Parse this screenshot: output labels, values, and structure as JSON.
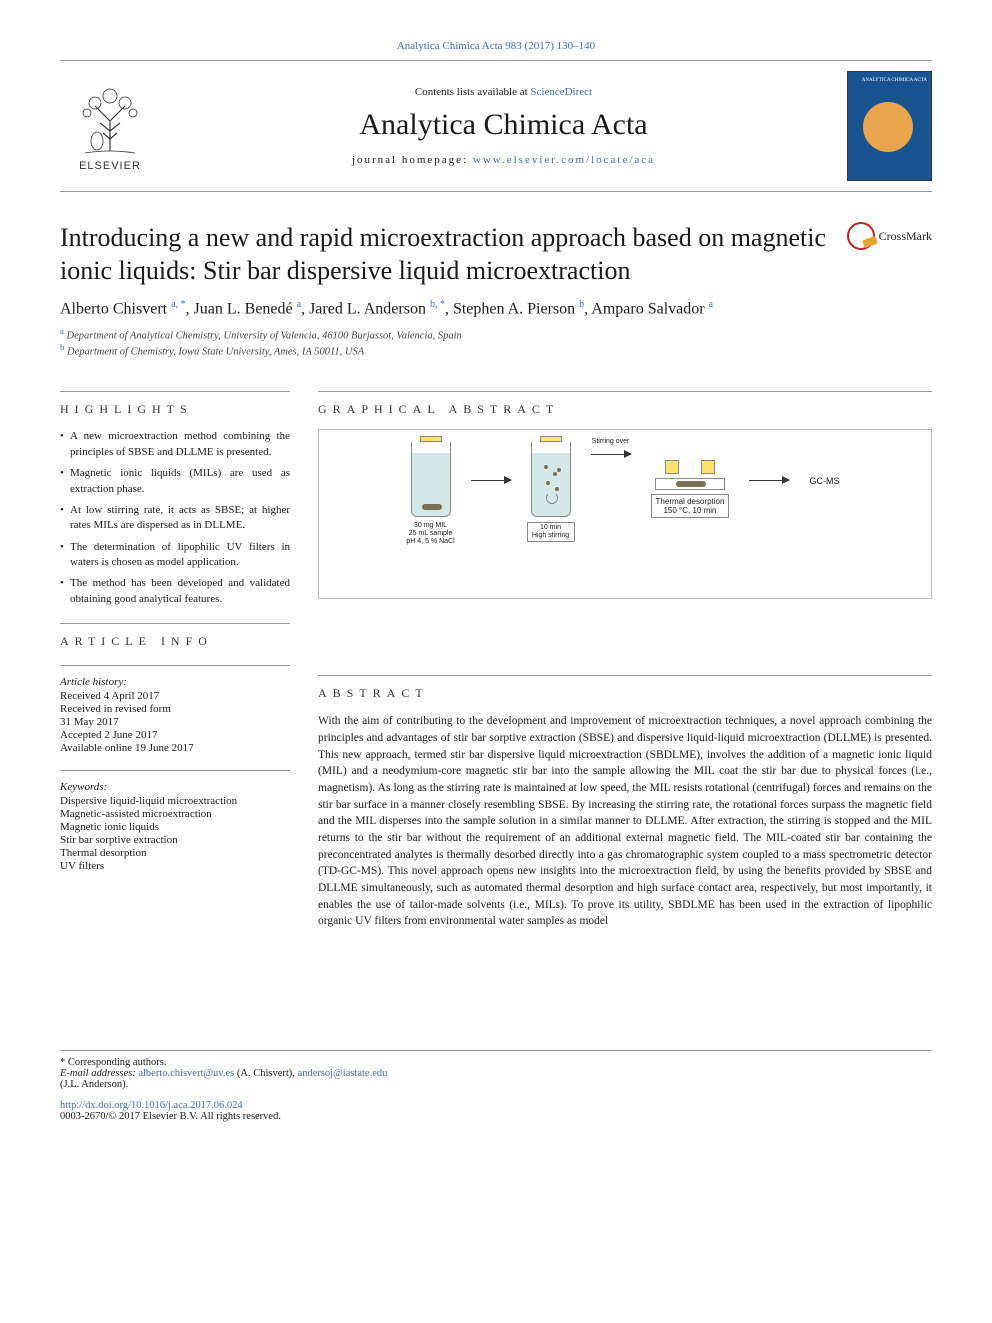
{
  "header": {
    "volume_line": "Analytica Chimica Acta 983 (2017) 130–140",
    "contents_prefix": "Contents lists available at ",
    "contents_link": "ScienceDirect",
    "journal_name": "Analytica Chimica Acta",
    "homepage_prefix": "journal homepage: ",
    "homepage_url": "www.elsevier.com/locate/aca",
    "elsevier_label": "ELSEVIER",
    "cover_label": "ANALYTICA CHIMICA ACTA"
  },
  "crossmark": "CrossMark",
  "title": "Introducing a new and rapid microextraction approach based on magnetic ionic liquids: Stir bar dispersive liquid microextraction",
  "authors_html": "Alberto Chisvert <sup>a, *</sup>, Juan L. Benedé <sup>a</sup>, Jared L. Anderson <sup>b, *</sup>, Stephen A. Pierson <sup>b</sup>, Amparo Salvador <sup>a</sup>",
  "affiliations": {
    "a": "Department of Analytical Chemistry, University of Valencia, 46100 Burjassot, Valencia, Spain",
    "b": "Department of Chemistry, Iowa State University, Ames, IA 50011, USA"
  },
  "sections": {
    "highlights": "highlights",
    "graphical_abstract": "graphical abstract",
    "article_info": "article info",
    "abstract": "abstract"
  },
  "highlights": [
    "A new microextraction method combining the principles of SBSE and DLLME is presented.",
    "Magnetic ionic liquids (MILs) are used as extraction phase.",
    "At low stirring rate, it acts as SBSE; at higher rates MILs are dispersed as in DLLME.",
    "The determination of lipophilic UV filters in waters is chosen as model application.",
    "The method has been developed and validated obtaining good analytical features."
  ],
  "graphical_abstract": {
    "vial1_labels": [
      "30 mg MIL",
      "25 mL sample",
      "pH 4, 5 % NaCl"
    ],
    "stirring_over": "Stirring over",
    "vial2_labels": [
      "10 min",
      "High stirring"
    ],
    "td_labels": [
      "Thermal desorption",
      "150 °C, 10 min"
    ],
    "gcms": "GC-MS",
    "colors": {
      "vial_liquid": "#d4e8e8",
      "stir_bar": "#7a7055",
      "cap": "#ffe070",
      "vial_border": "#888888",
      "arrow": "#333333"
    }
  },
  "article_info": {
    "history_heading": "Article history:",
    "received": "Received 4 April 2017",
    "revised": "Received in revised form",
    "revised_date": "31 May 2017",
    "accepted": "Accepted 2 June 2017",
    "online": "Available online 19 June 2017",
    "keywords_heading": "Keywords:",
    "keywords": [
      "Dispersive liquid-liquid microextraction",
      "Magnetic-assisted microextraction",
      "Magnetic ionic liquids",
      "Stir bar sorptive extraction",
      "Thermal desorption",
      "UV filters"
    ]
  },
  "abstract": "With the aim of contributing to the development and improvement of microextraction techniques, a novel approach combining the principles and advantages of stir bar sorptive extraction (SBSE) and dispersive liquid-liquid microextraction (DLLME) is presented. This new approach, termed stir bar dispersive liquid microextraction (SBDLME), involves the addition of a magnetic ionic liquid (MIL) and a neodymium-core magnetic stir bar into the sample allowing the MIL coat the stir bar due to physical forces (i.e., magnetism). As long as the stirring rate is maintained at low speed, the MIL resists rotational (centrifugal) forces and remains on the stir bar surface in a manner closely resembling SBSE. By increasing the stirring rate, the rotational forces surpass the magnetic field and the MIL disperses into the sample solution in a similar manner to DLLME. After extraction, the stirring is stopped and the MIL returns to the stir bar without the requirement of an additional external magnetic field. The MIL-coated stir bar containing the preconcentrated analytes is thermally desorbed directly into a gas chromatographic system coupled to a mass spectrometric detector (TD-GC-MS). This novel approach opens new insights into the microextraction field, by using the benefits provided by SBSE and DLLME simultaneously, such as automated thermal desorption and high surface contact area, respectively, but most importantly, it enables the use of tailor-made solvents (i.e., MILs). To prove its utility, SBDLME has been used in the extraction of lipophilic organic UV filters from environmental water samples as model",
  "footer": {
    "corresponding": "* Corresponding authors.",
    "email_label": "E-mail addresses:",
    "email1": "alberto.chisvert@uv.es",
    "email1_name": "(A. Chisvert),",
    "email2": "andersoj@iastate.edu",
    "email2_name": "(J.L. Anderson).",
    "doi": "http://dx.doi.org/10.1016/j.aca.2017.06.024",
    "copyright": "0003-2670/© 2017 Elsevier B.V. All rights reserved."
  }
}
